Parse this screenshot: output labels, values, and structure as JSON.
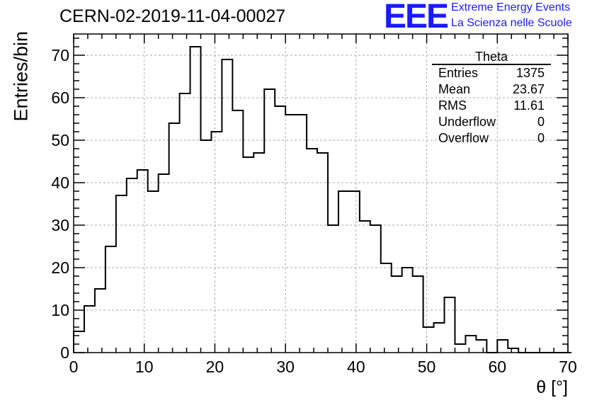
{
  "header": {
    "title": "CERN-02-2019-11-04-00027",
    "logo_mark": "EEE",
    "logo_line1": "Extreme Energy Events",
    "logo_line2": "La Scienza nelle Scuole"
  },
  "stats": {
    "title": "Theta",
    "rows": [
      {
        "label": "Entries",
        "value": "1375"
      },
      {
        "label": "Mean",
        "value": "23.67"
      },
      {
        "label": "RMS",
        "value": "11.61"
      },
      {
        "label": "Underflow",
        "value": "0"
      },
      {
        "label": "Overflow",
        "value": "0"
      }
    ]
  },
  "colors": {
    "accent": "#1a1aff",
    "line": "#000000",
    "grid": "#aaaaaa"
  },
  "chart_data": {
    "type": "bar",
    "histogram": true,
    "xlabel": "θ [°]",
    "ylabel": "Entries/bin",
    "xlim": [
      0,
      70
    ],
    "ylim": [
      0,
      75
    ],
    "grid": true,
    "legend": "top-right",
    "xticks": [
      0,
      10,
      20,
      30,
      40,
      50,
      60,
      70
    ],
    "yticks": [
      0,
      10,
      20,
      30,
      40,
      50,
      60,
      70
    ],
    "bin_width": 1.5,
    "values": [
      5,
      11,
      15,
      25,
      37,
      41,
      43,
      38,
      42,
      54,
      61,
      72,
      50,
      52,
      69,
      57,
      46,
      47,
      62,
      58,
      56,
      56,
      48,
      47,
      30,
      38,
      38,
      31,
      30,
      21,
      18,
      20,
      18,
      6,
      7,
      13,
      2,
      4,
      3,
      0,
      3,
      1,
      0,
      0,
      0,
      0,
      0
    ]
  }
}
